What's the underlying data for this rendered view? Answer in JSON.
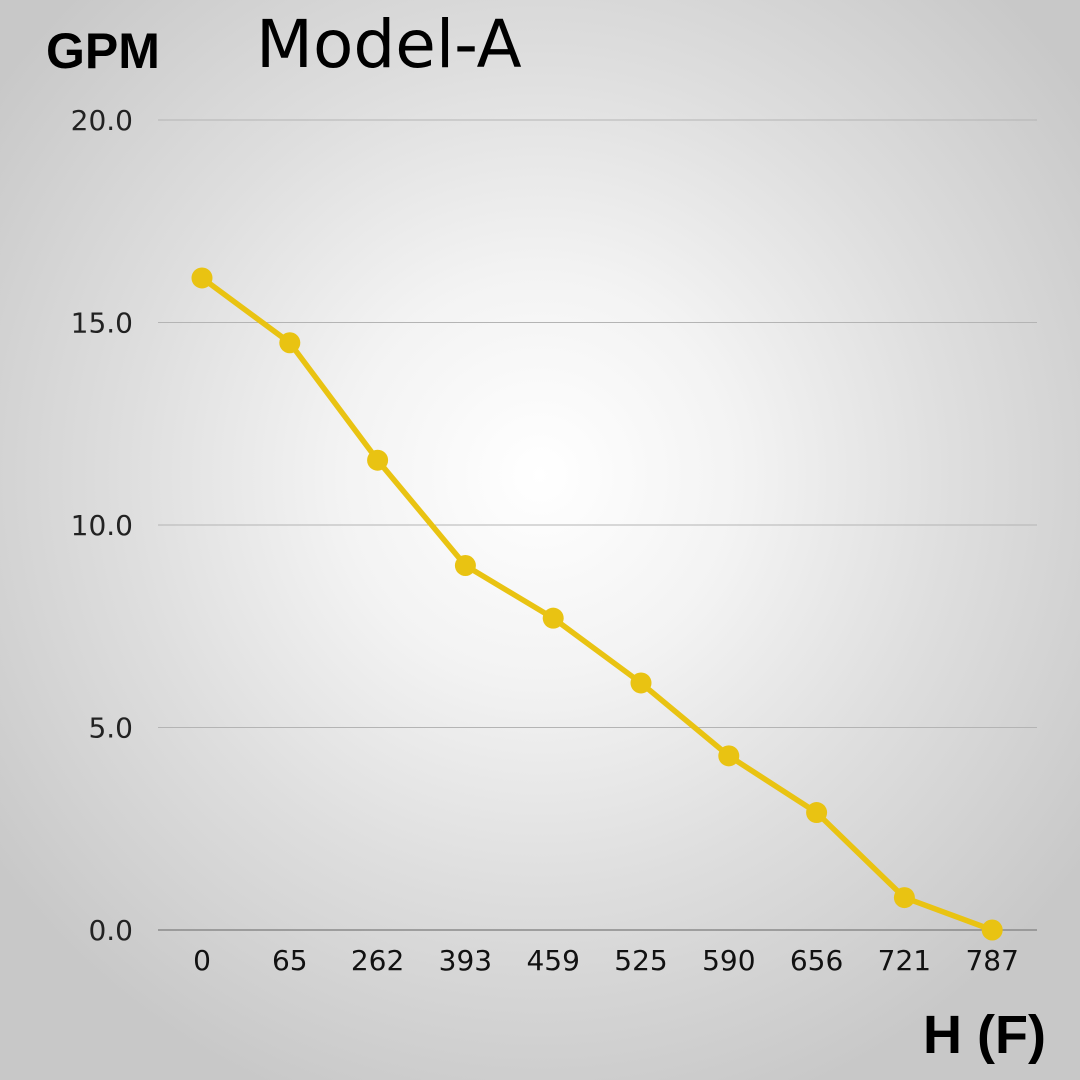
{
  "chart_data": {
    "type": "line",
    "title": "Model-A",
    "ylabel": "GPM",
    "xlabel": "H (F)",
    "categories": [
      "0",
      "65",
      "262",
      "393",
      "459",
      "525",
      "590",
      "656",
      "721",
      "787"
    ],
    "series": [
      {
        "values": [
          16.1,
          14.5,
          11.6,
          9.0,
          7.7,
          6.1,
          4.3,
          2.9,
          0.8,
          0.0
        ],
        "color": "#e9c312"
      }
    ],
    "ylim": [
      0,
      20
    ],
    "yticks": [
      "0.0",
      "5.0",
      "10.0",
      "15.0",
      "20.0"
    ],
    "grid": true,
    "gridColor": "#b4b4b4"
  }
}
